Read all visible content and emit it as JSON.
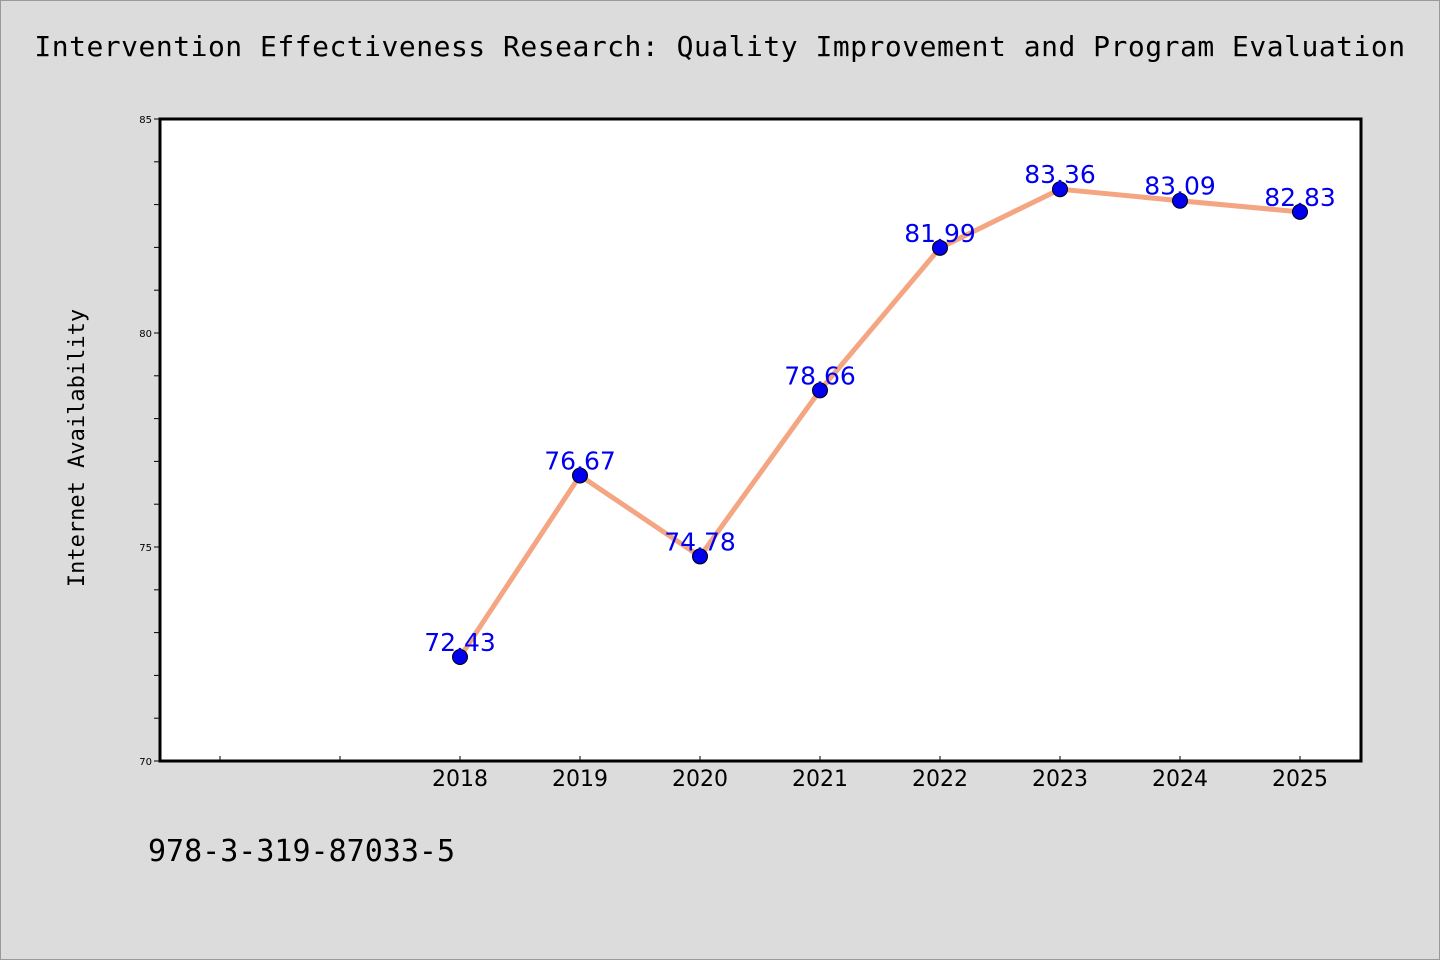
{
  "chart_data": {
    "type": "line",
    "title": "Intervention Effectiveness Research: Quality Improvement and Program Evaluation",
    "xlabel": "",
    "ylabel": "Internet Availability",
    "categories": [
      "2018",
      "2019",
      "2020",
      "2021",
      "2022",
      "2023",
      "2024",
      "2025"
    ],
    "series": [
      {
        "values": [
          72.43,
          76.67,
          74.78,
          78.66,
          81.99,
          83.36,
          83.09,
          82.83
        ]
      }
    ],
    "data_labels": [
      "72.43",
      "76.67",
      "74.78",
      "78.66",
      "81.99",
      "83.36",
      "83.09",
      "82.83"
    ],
    "ylim": [
      70,
      85
    ],
    "y_ticks": [
      "70",
      "75",
      "80",
      "85"
    ],
    "grid": false,
    "legend": "none",
    "colors": {
      "line": "#f4a582",
      "marker": "#0000ee",
      "label": "#0000ee",
      "background": "#dcdcdc",
      "plot_area": "#ffffff"
    }
  },
  "footer": {
    "isbn": "978-3-319-87033-5"
  }
}
